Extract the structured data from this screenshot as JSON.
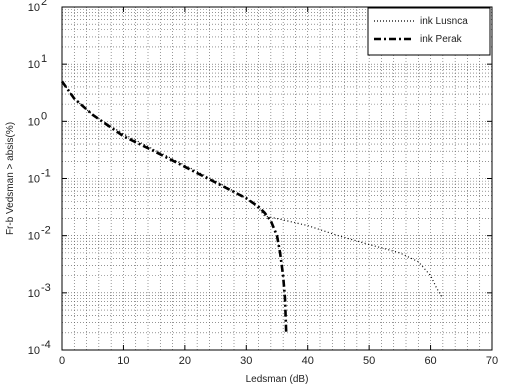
{
  "chart_data": {
    "type": "line",
    "xlabel": "Ledsman (dB)",
    "ylabel": "Fr-b Vedsman > absis(%)",
    "xlim": [
      0,
      70
    ],
    "ylim_log10": [
      -4,
      2
    ],
    "y_scale": "log",
    "x_ticks": [
      0,
      10,
      20,
      30,
      40,
      50,
      60,
      70
    ],
    "x_tick_labels": [
      "0",
      "10",
      "20",
      "30",
      "40",
      "50",
      "60",
      "70"
    ],
    "y_ticks_exp": [
      2,
      1,
      0,
      -1,
      -2,
      -3,
      -4
    ],
    "y_tick_labels": [
      {
        "base": "10",
        "exp": "2"
      },
      {
        "base": "10",
        "exp": "1"
      },
      {
        "base": "10",
        "exp": "0"
      },
      {
        "base": "10",
        "exp": "-1"
      },
      {
        "base": "10",
        "exp": "-2"
      },
      {
        "base": "10",
        "exp": "-3"
      },
      {
        "base": "10",
        "exp": "-4"
      }
    ],
    "grid": true,
    "legend_position": "top-right",
    "series": [
      {
        "name": "ink Lusnca",
        "style": "dotted",
        "color": "#000000",
        "x": [
          0,
          2,
          5,
          10,
          15,
          20,
          25,
          30,
          32,
          33,
          35,
          40,
          45,
          50,
          55,
          58,
          60,
          61,
          62
        ],
        "y": [
          5.0,
          2.5,
          1.3,
          0.6,
          0.32,
          0.17,
          0.09,
          0.045,
          0.03,
          0.022,
          0.02,
          0.015,
          0.01,
          0.007,
          0.005,
          0.0035,
          0.002,
          0.0012,
          0.0008
        ]
      },
      {
        "name": "ink Perak",
        "style": "dash-dot",
        "color": "#000000",
        "x": [
          0,
          2,
          5,
          10,
          15,
          20,
          25,
          30,
          32,
          33,
          34,
          35,
          35.5,
          36,
          36.3,
          36.5
        ],
        "y": [
          5.0,
          2.5,
          1.3,
          0.55,
          0.3,
          0.16,
          0.085,
          0.045,
          0.032,
          0.025,
          0.018,
          0.01,
          0.005,
          0.002,
          0.0008,
          0.0002
        ]
      }
    ]
  },
  "legend": {
    "items": [
      {
        "label": "ink Lusnca",
        "style": "dotted"
      },
      {
        "label": "ink Perak",
        "style": "dash-dot"
      }
    ]
  },
  "axes": {
    "xlabel": "Ledsman (dB)",
    "ylabel": "Fr-b Vedsman > absis(%)"
  }
}
